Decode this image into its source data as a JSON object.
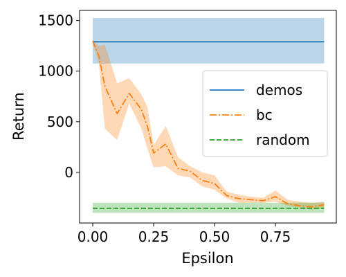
{
  "chart_data": {
    "type": "line",
    "xlabel": "Epsilon",
    "ylabel": "Return",
    "xlim": [
      -0.054,
      1.0
    ],
    "ylim": [
      -500,
      1600
    ],
    "xticks": [
      0.0,
      0.25,
      0.5,
      0.75
    ],
    "xtick_labels": [
      "0.00",
      "0.25",
      "0.50",
      "0.75"
    ],
    "yticks": [
      0,
      500,
      1000,
      1500
    ],
    "ytick_labels": [
      "0",
      "500",
      "1000",
      "1500"
    ],
    "grid": false,
    "legend_position": "center-right",
    "series": [
      {
        "name": "demos",
        "style": "solid",
        "color": "#1f77b4",
        "x": [
          0.0,
          0.95
        ],
        "y": [
          1290,
          1290
        ],
        "band_low": [
          1075,
          1075
        ],
        "band_high": [
          1525,
          1525
        ]
      },
      {
        "name": "bc",
        "style": "dashdot",
        "color": "#ff7f0e",
        "x": [
          0.0,
          0.025,
          0.05,
          0.1,
          0.15,
          0.2,
          0.225,
          0.25,
          0.3,
          0.35,
          0.4,
          0.45,
          0.5,
          0.55,
          0.6,
          0.65,
          0.7,
          0.75,
          0.8,
          0.85,
          0.9,
          0.95
        ],
        "y": [
          1300,
          1150,
          850,
          580,
          780,
          620,
          450,
          190,
          280,
          40,
          10,
          -80,
          -110,
          -230,
          -260,
          -270,
          -280,
          -240,
          -310,
          -330,
          -340,
          -320
        ],
        "band_low": [
          1280,
          1080,
          430,
          320,
          680,
          430,
          230,
          50,
          60,
          -30,
          -50,
          -140,
          -170,
          -260,
          -300,
          -300,
          -300,
          -290,
          -330,
          -350,
          -370,
          -350
        ],
        "band_high": [
          1300,
          1250,
          1260,
          880,
          930,
          770,
          640,
          270,
          460,
          150,
          60,
          0,
          -30,
          -190,
          -220,
          -240,
          -250,
          -180,
          -270,
          -290,
          -300,
          -290
        ]
      },
      {
        "name": "random",
        "style": "dashed",
        "color": "#2ca02c",
        "x": [
          0.0,
          0.95
        ],
        "y": [
          -355,
          -355
        ],
        "band_low": [
          -400,
          -400
        ],
        "band_high": [
          -300,
          -300
        ]
      }
    ]
  }
}
